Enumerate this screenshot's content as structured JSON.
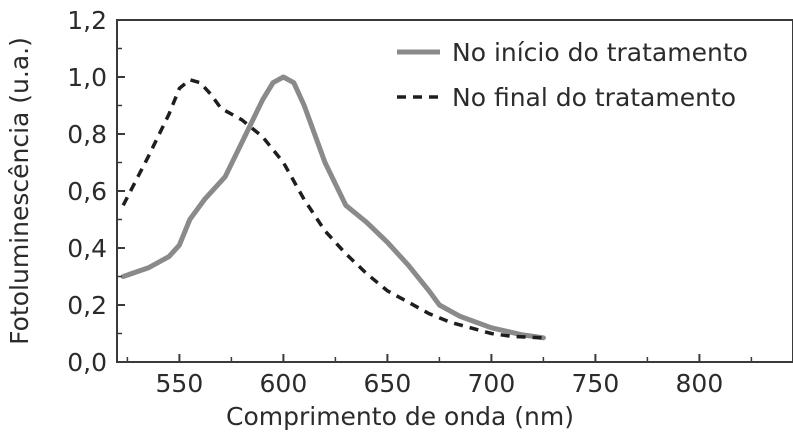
{
  "chart_data": {
    "type": "line",
    "title": "",
    "xlabel": "Comprimento de onda (nm)",
    "ylabel": "Fotoluminescência (u.a.)",
    "xlim": [
      520,
      845
    ],
    "ylim": [
      0,
      1.2
    ],
    "x_ticks": [
      550,
      600,
      650,
      700,
      750,
      800
    ],
    "x_tick_labels": [
      "550",
      "600",
      "650",
      "700",
      "750",
      "800"
    ],
    "y_ticks": [
      0,
      0.2,
      0.4,
      0.6,
      0.8,
      1.0,
      1.2
    ],
    "y_tick_labels": [
      "0,0",
      "0,2",
      "0,4",
      "0,6",
      "0,8",
      "1,0",
      "1,2"
    ],
    "grid": false,
    "legend_position": "top-right",
    "series": [
      {
        "name": "No início do tratamento",
        "style": "solid",
        "color": "#8a8a8a",
        "x": [
          523,
          535,
          545,
          550,
          555,
          562,
          572,
          582,
          590,
          595,
          600,
          605,
          610,
          620,
          630,
          640,
          650,
          660,
          670,
          675,
          685,
          700,
          715,
          725
        ],
        "y": [
          0.3,
          0.33,
          0.37,
          0.41,
          0.5,
          0.57,
          0.65,
          0.8,
          0.92,
          0.98,
          1.0,
          0.98,
          0.9,
          0.7,
          0.55,
          0.49,
          0.42,
          0.34,
          0.25,
          0.2,
          0.16,
          0.12,
          0.095,
          0.085
        ]
      },
      {
        "name": "No final do tratamento",
        "style": "dashed",
        "color": "#1e1e1e",
        "x": [
          523,
          535,
          545,
          550,
          555,
          560,
          565,
          570,
          580,
          590,
          600,
          610,
          620,
          630,
          640,
          650,
          660,
          670,
          680,
          690,
          700,
          710,
          725
        ],
        "y": [
          0.55,
          0.72,
          0.87,
          0.96,
          0.99,
          0.98,
          0.94,
          0.89,
          0.85,
          0.79,
          0.7,
          0.57,
          0.46,
          0.38,
          0.31,
          0.25,
          0.21,
          0.17,
          0.14,
          0.12,
          0.1,
          0.09,
          0.085
        ]
      }
    ]
  }
}
